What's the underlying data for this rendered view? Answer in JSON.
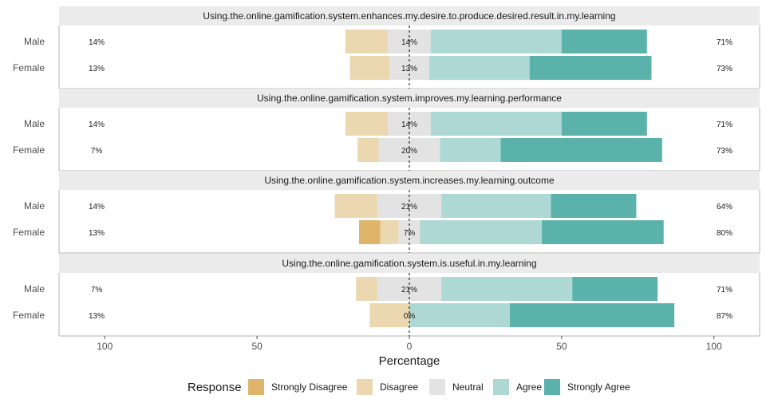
{
  "chart_data": {
    "type": "bar",
    "orientation": "horizontal-diverging",
    "xlabel": "Percentage",
    "x_ticks": [
      -100,
      -50,
      0,
      50,
      100
    ],
    "x_tick_labels": [
      "100",
      "50",
      "0",
      "50",
      "100"
    ],
    "xlim": [
      -115,
      115
    ],
    "legend": {
      "title": "Response",
      "placement": "bottom",
      "items": [
        {
          "name": "Strongly Disagree",
          "color": "#DFB56C"
        },
        {
          "name": "Disagree",
          "color": "#EBD8B0"
        },
        {
          "name": "Neutral",
          "color": "#E3E3E3"
        },
        {
          "name": "Agree",
          "color": "#AED8D4"
        },
        {
          "name": "Strongly Agree",
          "color": "#5BB2AA"
        }
      ]
    },
    "panels": [
      {
        "title": "Using.the.online.gamification.system.enhances.my.desire.to.produce.desired.result.in.my.learning",
        "rows": [
          {
            "group": "Male",
            "values": [
              0,
              14,
              14,
              43,
              28
            ],
            "left_label": "14%",
            "center_label": "14%",
            "right_label": "71%"
          },
          {
            "group": "Female",
            "values": [
              0,
              13,
              13,
              33,
              40
            ],
            "left_label": "13%",
            "center_label": "13%",
            "right_label": "73%"
          }
        ]
      },
      {
        "title": "Using.the.online.gamification.system.improves.my.learning.performance",
        "rows": [
          {
            "group": "Male",
            "values": [
              0,
              14,
              14,
              43,
              28
            ],
            "left_label": "14%",
            "center_label": "14%",
            "right_label": "71%"
          },
          {
            "group": "Female",
            "values": [
              0,
              7,
              20,
              20,
              53
            ],
            "left_label": "7%",
            "center_label": "20%",
            "right_label": "73%"
          }
        ]
      },
      {
        "title": "Using.the.online.gamification.system.increases.my.learning.outcome",
        "rows": [
          {
            "group": "Male",
            "values": [
              0,
              14,
              21,
              36,
              28
            ],
            "left_label": "14%",
            "center_label": "21%",
            "right_label": "64%"
          },
          {
            "group": "Female",
            "values": [
              7,
              6,
              7,
              40,
              40
            ],
            "left_label": "13%",
            "center_label": "7%",
            "right_label": "80%"
          }
        ]
      },
      {
        "title": "Using.the.online.gamification.system.is.useful.in.my.learning",
        "rows": [
          {
            "group": "Male",
            "values": [
              0,
              7,
              21,
              43,
              28
            ],
            "left_label": "7%",
            "center_label": "21%",
            "right_label": "71%"
          },
          {
            "group": "Female",
            "values": [
              0,
              13,
              0,
              33,
              54
            ],
            "left_label": "13%",
            "center_label": "0%",
            "right_label": "87%"
          }
        ]
      }
    ]
  }
}
